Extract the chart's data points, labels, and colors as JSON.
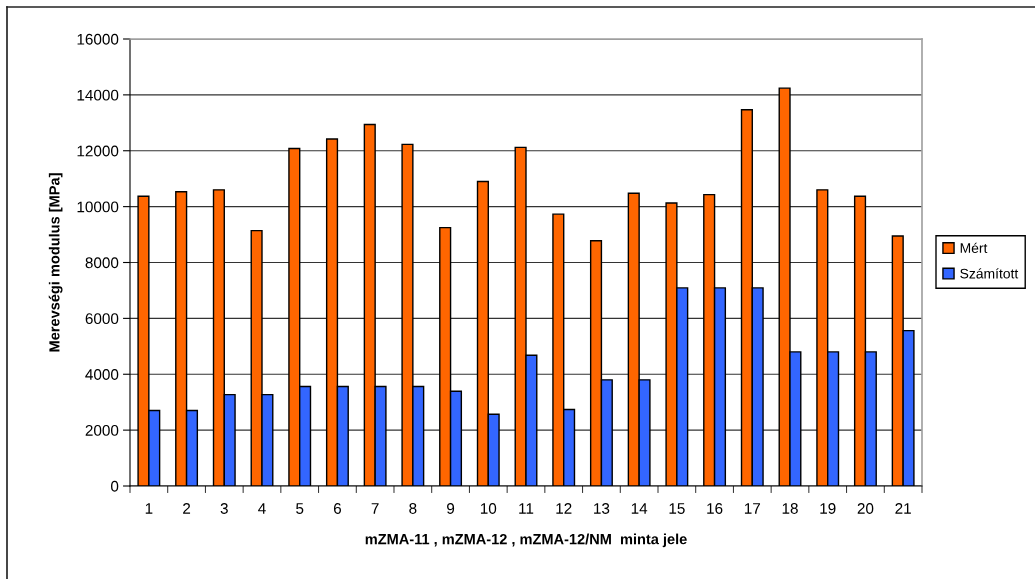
{
  "chart_data": {
    "type": "bar",
    "xlabel": "mZMA-11 , mZMA-12 , mZMA-12/NM  minta jele",
    "ylabel": "Merevségi modulus [MPa]",
    "categories": [
      "1",
      "2",
      "3",
      "4",
      "5",
      "6",
      "7",
      "8",
      "9",
      "10",
      "11",
      "12",
      "13",
      "14",
      "15",
      "16",
      "17",
      "18",
      "19",
      "20",
      "21"
    ],
    "series": [
      {
        "name": "Mért",
        "color": "#ff6600",
        "values": [
          10370,
          10530,
          10600,
          9140,
          12080,
          12420,
          12940,
          12230,
          9250,
          10900,
          12120,
          9730,
          8780,
          10480,
          10130,
          10430,
          13470,
          14240,
          10600,
          10370,
          8950
        ]
      },
      {
        "name": "Számított",
        "color": "#3366ff",
        "values": [
          2700,
          2700,
          3270,
          3270,
          3560,
          3560,
          3560,
          3560,
          3390,
          2570,
          4680,
          2740,
          3800,
          3800,
          7090,
          7090,
          7090,
          4800,
          4800,
          4800,
          5560
        ]
      }
    ],
    "ylim": [
      0,
      16000
    ],
    "yticks": [
      0,
      2000,
      4000,
      6000,
      8000,
      10000,
      12000,
      14000,
      16000
    ],
    "grid": "y",
    "legend": "right"
  }
}
